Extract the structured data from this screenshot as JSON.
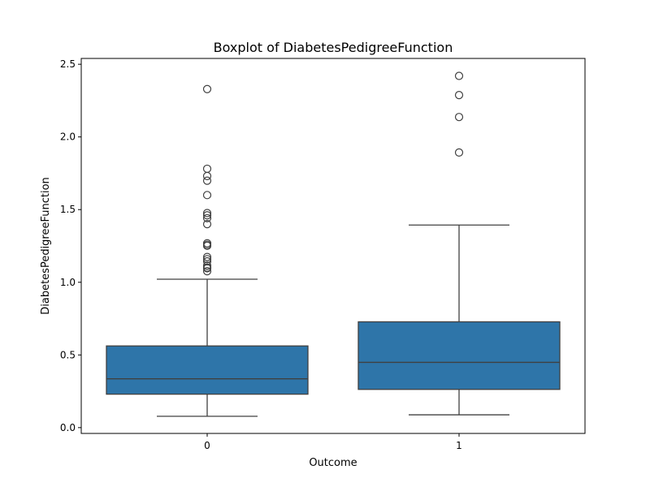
{
  "chart_data": {
    "type": "boxplot",
    "title": "Boxplot of DiabetesPedigreeFunction",
    "xlabel": "Outcome",
    "ylabel": "DiabetesPedigreeFunction",
    "ylim": [
      -0.04,
      2.54
    ],
    "yticks": [
      0.0,
      0.5,
      1.0,
      1.5,
      2.0,
      2.5
    ],
    "ytick_labels": [
      "0.0",
      "0.5",
      "1.0",
      "1.5",
      "2.0",
      "2.5"
    ],
    "categories": [
      "0",
      "1"
    ],
    "box_color": "#2e75a9",
    "line_color": "#404040",
    "grid": false,
    "boxes": [
      {
        "category": "0",
        "whisker_low": 0.078,
        "q1": 0.23,
        "median": 0.336,
        "q3": 0.562,
        "whisker_high": 1.021,
        "outliers": [
          2.329,
          1.781,
          1.731,
          1.699,
          1.6,
          1.476,
          1.461,
          1.441,
          1.4,
          1.268,
          1.258,
          1.251,
          1.174,
          1.159,
          1.144,
          1.114,
          1.101,
          1.096,
          1.076
        ]
      },
      {
        "category": "1",
        "whisker_low": 0.088,
        "q1": 0.263,
        "median": 0.449,
        "q3": 0.728,
        "whisker_high": 1.394,
        "outliers": [
          2.42,
          2.288,
          2.137,
          1.893
        ]
      }
    ]
  }
}
